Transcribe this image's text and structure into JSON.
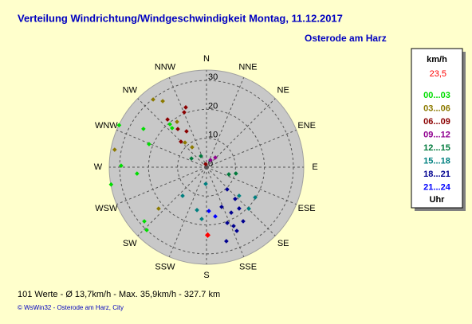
{
  "chart_data": {
    "type": "polar-scatter",
    "title": "Verteilung Windrichtung/Windgeschwindigkeit  Montag, 11.12.2017",
    "subtitle": "Osterode am Harz",
    "directions": [
      "N",
      "NNE",
      "NE",
      "ENE",
      "E",
      "ESE",
      "SE",
      "SSE",
      "S",
      "SSW",
      "SW",
      "WSW",
      "W",
      "WNW",
      "NW",
      "NNW"
    ],
    "rlim": [
      0,
      33.6
    ],
    "rticks": [
      0,
      10,
      20,
      30
    ],
    "grid": true,
    "legend_title": "km/h",
    "legend_footer": "Uhr",
    "current": {
      "label": "23,5",
      "speed": 23.5,
      "direction": 179,
      "color": "#ff0000"
    },
    "series": [
      {
        "name": "00...03",
        "color": "#00dd00",
        "theta": [
          301.3,
          295.7,
          291.9,
          264.7,
          271,
          259.7,
          228.9,
          223.5,
          318.7,
          319.6
        ],
        "r": [
          25.5,
          33.5,
          21.4,
          24.1,
          29.5,
          33.5,
          28.5,
          30,
          18,
          19.5
        ]
      },
      {
        "name": "03...06",
        "color": "#8c7a00",
        "theta": [
          321.8,
          326.5,
          280.8,
          229.1,
          318.9,
          324.2,
          327
        ],
        "r": [
          29.8,
          27.4,
          32.3,
          21.9,
          11.3,
          8.5,
          18.7
        ]
      },
      {
        "name": "06...09",
        "color": "#8b0000",
        "theta": [
          340.9,
          337.9,
          320.8,
          323.1,
          330.9,
          315,
          345
        ],
        "r": [
          21.9,
          20.5,
          21.3,
          16.5,
          14.2,
          12.5,
          1.1
        ]
      },
      {
        "name": "09...12",
        "color": "#900090",
        "theta": [
          42.5,
          29
        ],
        "r": [
          4.5,
          2.8
        ]
      },
      {
        "name": "12...15",
        "color": "#007a3c",
        "theta": [
          333.4,
          300,
          102.2,
          107.8
        ],
        "r": [
          4.3,
          6,
          10.4,
          8.1
        ]
      },
      {
        "name": "15...18",
        "color": "#008080",
        "theta": [
          219.8,
          182.7,
          192.5,
          185.3,
          121.9,
          134.5,
          131.3
        ],
        "r": [
          12.9,
          5.8,
          15.2,
          18,
          19.8,
          20.5,
          15
        ]
      },
      {
        "name": "18...21",
        "color": "#000090",
        "theta": [
          137.1,
          138,
          141.7,
          151.5,
          159.6,
          159.2,
          155.3,
          165,
          154.6,
          145.9
        ],
        "r": [
          10.5,
          14.8,
          18.2,
          17.9,
          20.6,
          14.7,
          22.4,
          26.5,
          24.4,
          22.6
        ]
      },
      {
        "name": "21...24",
        "color": "#0000ff",
        "theta": [
          176.9,
          169.9
        ],
        "r": [
          15.2,
          17.3
        ]
      }
    ],
    "summary": "101 Werte   -   Ø 13,7km/h   -   Max. 35,9km/h   -   327.7 km",
    "footer": "© WsWin32  -  Osterode am Harz, City"
  }
}
